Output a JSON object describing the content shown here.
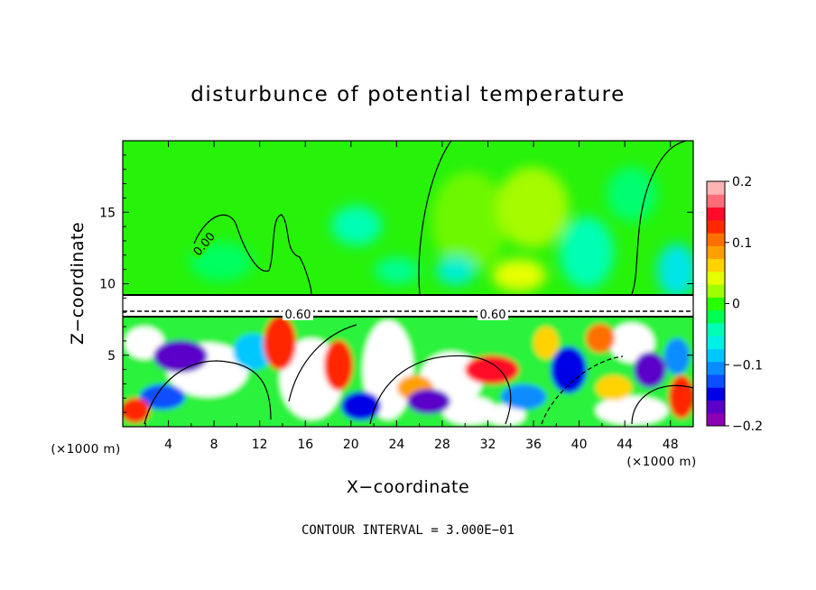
{
  "chart_data": {
    "type": "heatmap",
    "title": "disturbunce of potential temperature",
    "xlabel": "X−coordinate",
    "ylabel": "Z−coordinate",
    "x_unit": "(×1000 m)",
    "y_unit": "(×1000 m)",
    "xlim": [
      0,
      50
    ],
    "ylim": [
      0,
      20
    ],
    "x_ticks": [
      "4",
      "8",
      "12",
      "16",
      "20",
      "24",
      "28",
      "32",
      "36",
      "40",
      "44",
      "48"
    ],
    "y_ticks": [
      "5",
      "10",
      "15"
    ],
    "colorbar": {
      "range": [
        -0.2,
        0.2
      ],
      "tick_labels": [
        "0.2",
        "0.1",
        "0",
        "−0.1",
        "−0.2"
      ],
      "colors": [
        "#8e00b4",
        "#5a00c8",
        "#0000e6",
        "#0a50ff",
        "#0a8cff",
        "#00c8ff",
        "#00f0e6",
        "#00ffb4",
        "#00ff50",
        "#28ff00",
        "#a0ff00",
        "#e6ff00",
        "#ffd200",
        "#ffa000",
        "#ff6e00",
        "#ff2800",
        "#ff0a28",
        "#ff6e78",
        "#ffb4b4"
      ]
    },
    "contour_labels": [
      "0.00",
      "0.60",
      "0.60"
    ],
    "contour_interval_text": "CONTOUR INTERVAL = 3.000E−01"
  }
}
